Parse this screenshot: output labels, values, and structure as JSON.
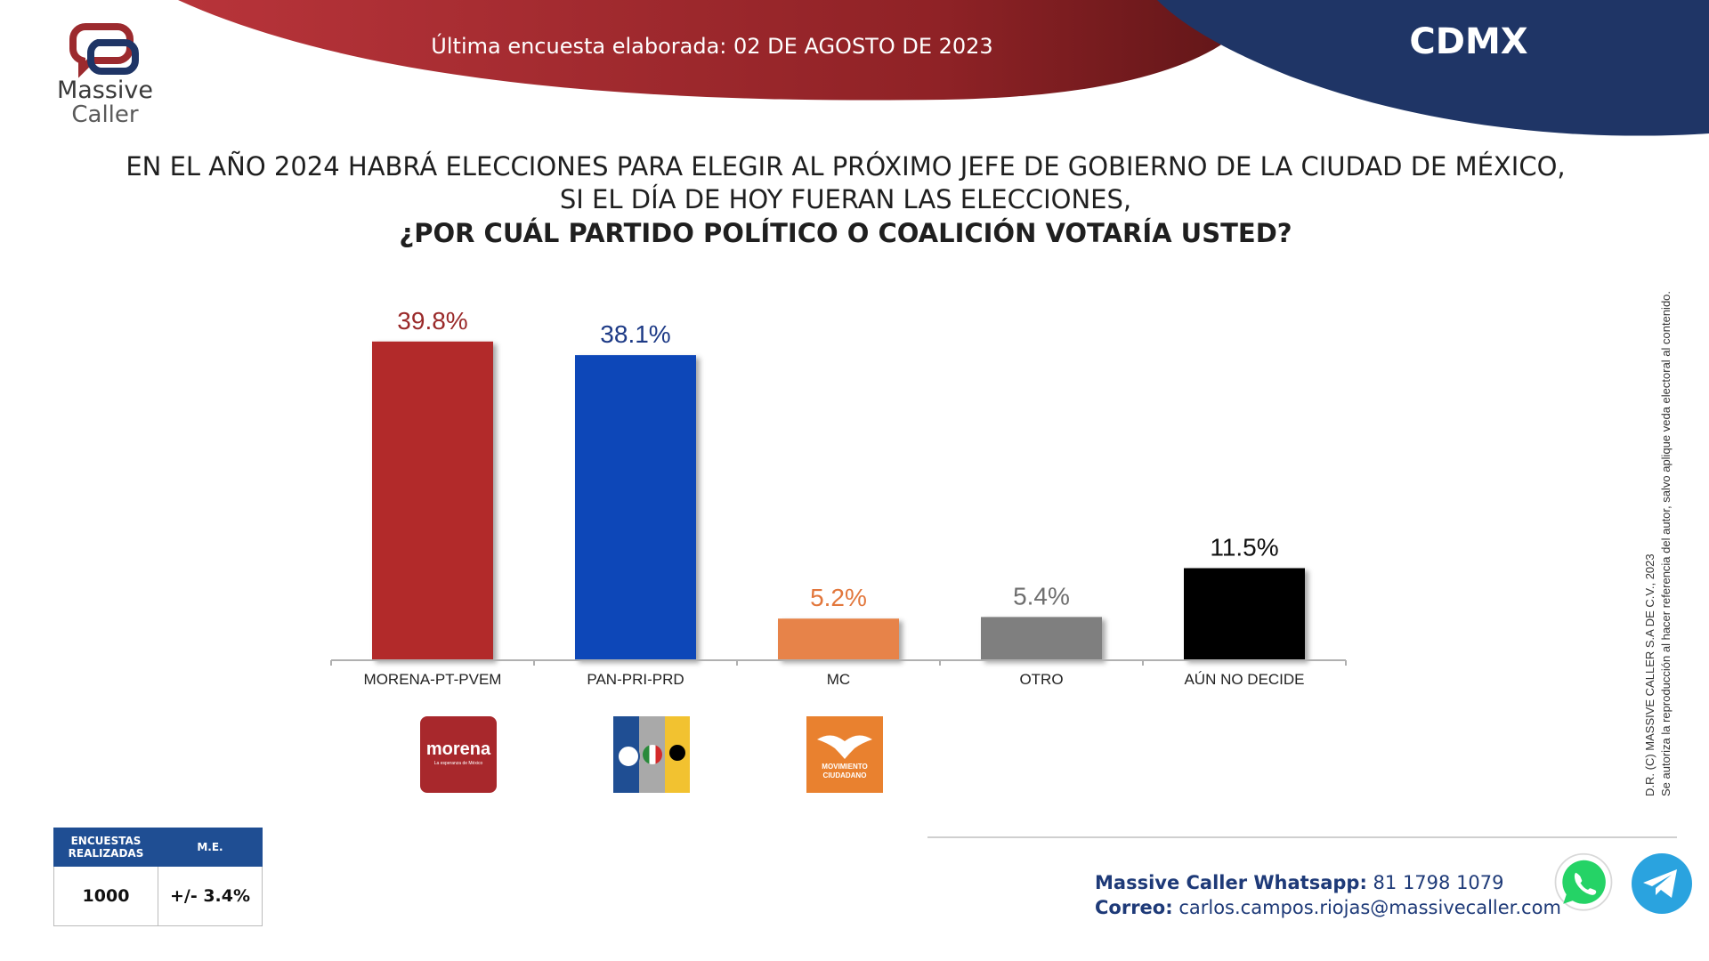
{
  "header": {
    "logo_line1": "Massive",
    "logo_line2": "Caller",
    "date_text": "Última encuesta elaborada: 02 DE AGOSTO DE 2023",
    "region": "CDMX"
  },
  "question": {
    "line1": "EN EL AÑO 2024 HABRÁ ELECCIONES PARA ELEGIR AL PRÓXIMO JEFE DE GOBIERNO DE  LA CIUDAD DE MÉXICO,",
    "line2": "SI EL DÍA DE HOY FUERAN LAS ELECCIONES,",
    "line3": "¿POR CUÁL PARTIDO POLÍTICO O COALICIÓN VOTARÍA USTED?"
  },
  "chart_data": {
    "type": "bar",
    "categories": [
      "MORENA-PT-PVEM",
      "PAN-PRI-PRD",
      "MC",
      "OTRO",
      "AÚN NO DECIDE"
    ],
    "values": [
      39.8,
      38.1,
      5.2,
      5.4,
      11.5
    ],
    "value_labels": [
      "39.8%",
      "38.1%",
      "5.2%",
      "5.4%",
      "11.5%"
    ],
    "colors": [
      "#b22a2a",
      "#1147b8",
      "#e7834a",
      "#7f7f7f",
      "#000000"
    ],
    "label_colors": [
      "#9a2a2a",
      "#1d3a86",
      "#e2773c",
      "#6e6e6e",
      "#111111"
    ],
    "ylim": [
      0,
      40
    ]
  },
  "party_logos": {
    "morena_text": "morena",
    "morena_sub": "La esperanza de México",
    "mc_text1": "MOVIMIENTO",
    "mc_text2": "CIUDADANO"
  },
  "stats_table": {
    "col1_header": "ENCUESTAS REALIZADAS",
    "col2_header": "M.E.",
    "col1_value": "1000",
    "col2_value": "+/- 3.4%"
  },
  "footer": {
    "whatsapp_label": "Massive Caller Whatsapp:",
    "whatsapp_value": "81 1798 1079",
    "email_label": "Correo:",
    "email_value": "carlos.campos.riojas@massivecaller.com"
  },
  "copyright": {
    "line1": "D.R. (C) MASSIVE CALLER S.A DE C.V., 2023",
    "line2": "Se autoriza la reproducción al hacer referencia del autor, salvo aplique veda electoral al contenido."
  },
  "colors": {
    "header_red": "#a52a2f",
    "header_blue": "#1f3566",
    "brand_blue": "#1f4e93",
    "whatsapp_green": "#25d366",
    "telegram_blue": "#2aa3df"
  }
}
